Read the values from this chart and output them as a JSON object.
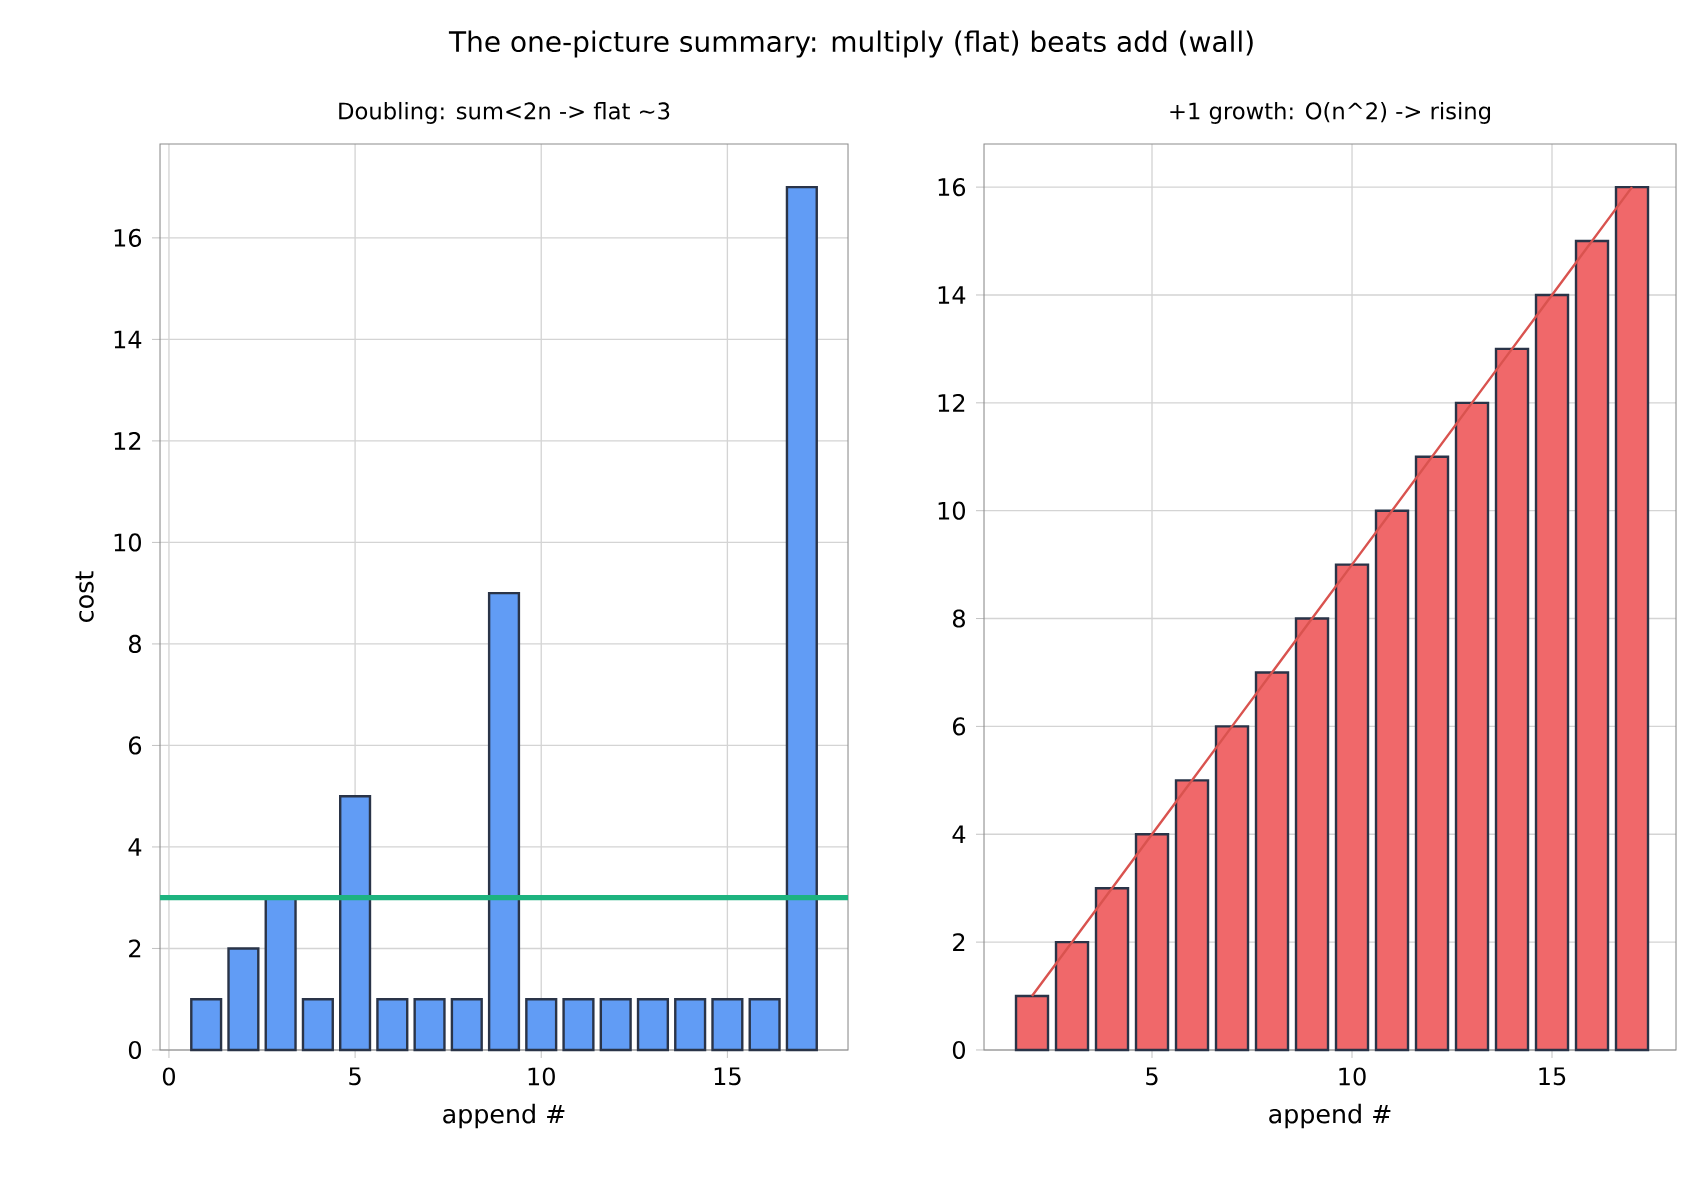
{
  "chart_data": [
    {
      "type": "bar",
      "title": "Doubling: sum<2n -> flat ~3",
      "xlabel": "append #",
      "ylabel": "cost",
      "annotations": [
        "The one-picture summary: multiply (flat) beats add (wall)"
      ],
      "x": [
        1,
        2,
        3,
        4,
        5,
        6,
        7,
        8,
        9,
        10,
        11,
        12,
        13,
        14,
        15,
        16,
        17
      ],
      "values": [
        1,
        2,
        3,
        1,
        5,
        1,
        1,
        1,
        9,
        1,
        1,
        1,
        1,
        1,
        1,
        1,
        17
      ],
      "color": "#619cf5",
      "xlim": [
        -0.24,
        18.24
      ],
      "ylim": [
        0,
        17.85
      ],
      "xticks": [
        0,
        5,
        10,
        15
      ],
      "yticks": [
        0,
        2,
        4,
        6,
        8,
        10,
        12,
        14,
        16
      ],
      "grid": true,
      "ref_lines": [
        {
          "axis": "y",
          "value": 3,
          "color": "#1db37f"
        }
      ]
    },
    {
      "type": "bar",
      "title": "+1 growth: O(n^2) -> rising",
      "xlabel": "append #",
      "x": [
        2,
        3,
        4,
        5,
        6,
        7,
        8,
        9,
        10,
        11,
        12,
        13,
        14,
        15,
        16,
        17
      ],
      "series": [
        {
          "type": "bar",
          "color": "#f0686a",
          "values": [
            1,
            2,
            3,
            4,
            5,
            6,
            7,
            8,
            9,
            10,
            11,
            12,
            13,
            14,
            15,
            16
          ]
        },
        {
          "type": "line",
          "color": "#d9534f",
          "values": [
            1,
            2,
            3,
            4,
            5,
            6,
            7,
            8,
            9,
            10,
            11,
            12,
            13,
            14,
            15,
            16
          ]
        }
      ],
      "xlim": [
        0.8,
        18.1
      ],
      "ylim": [
        0,
        16.8
      ],
      "xticks": [
        5,
        10,
        15
      ],
      "yticks": [
        0,
        2,
        4,
        6,
        8,
        10,
        12,
        14,
        16
      ],
      "grid": true
    }
  ]
}
